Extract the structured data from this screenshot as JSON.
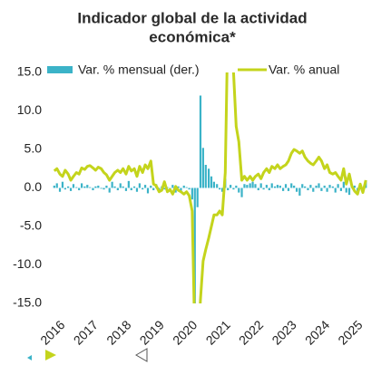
{
  "chart_data": {
    "type": "combo",
    "title": [
      "Indicador global de la actividad",
      "económica*"
    ],
    "xlim": [
      2015.95,
      2025.55
    ],
    "xticks": [
      2016,
      2017,
      2018,
      2019,
      2020,
      2021,
      2022,
      2023,
      2024,
      2025
    ],
    "ylim": [
      -15,
      15
    ],
    "yticks": [
      {
        "value": 15,
        "label": "15.0"
      },
      {
        "value": 10,
        "label": "10.0"
      },
      {
        "value": 5,
        "label": "5.0"
      },
      {
        "value": 0,
        "label": "0.0"
      },
      {
        "value": -5,
        "label": "-5.0"
      },
      {
        "value": -10,
        "label": "-10.0"
      },
      {
        "value": -15,
        "label": "-15.0"
      }
    ],
    "x": [
      2016.0,
      2016.08,
      2016.17,
      2016.25,
      2016.33,
      2016.42,
      2016.5,
      2016.58,
      2016.67,
      2016.75,
      2016.83,
      2016.92,
      2017.0,
      2017.08,
      2017.17,
      2017.25,
      2017.33,
      2017.42,
      2017.5,
      2017.58,
      2017.67,
      2017.75,
      2017.83,
      2017.92,
      2018.0,
      2018.08,
      2018.17,
      2018.25,
      2018.33,
      2018.42,
      2018.5,
      2018.58,
      2018.67,
      2018.75,
      2018.83,
      2018.92,
      2019.0,
      2019.08,
      2019.17,
      2019.25,
      2019.33,
      2019.42,
      2019.5,
      2019.58,
      2019.67,
      2019.75,
      2019.83,
      2019.92,
      2020.0,
      2020.08,
      2020.17,
      2020.25,
      2020.33,
      2020.42,
      2020.5,
      2020.58,
      2020.67,
      2020.75,
      2020.83,
      2020.92,
      2021.0,
      2021.08,
      2021.17,
      2021.25,
      2021.33,
      2021.42,
      2021.5,
      2021.58,
      2021.67,
      2021.75,
      2021.83,
      2021.92,
      2022.0,
      2022.08,
      2022.17,
      2022.25,
      2022.33,
      2022.42,
      2022.5,
      2022.58,
      2022.67,
      2022.75,
      2022.83,
      2022.92,
      2023.0,
      2023.08,
      2023.17,
      2023.25,
      2023.33,
      2023.42,
      2023.5,
      2023.58,
      2023.67,
      2023.75,
      2023.83,
      2023.92,
      2024.0,
      2024.08,
      2024.17,
      2024.25,
      2024.33,
      2024.42,
      2024.5,
      2024.58,
      2024.67,
      2024.75,
      2024.83,
      2024.92,
      2025.0,
      2025.08,
      2025.17,
      2025.25,
      2025.33,
      2025.42
    ],
    "series": [
      {
        "name": "Var. % mensual (der.)",
        "type": "bar",
        "color": "#3bb3c8",
        "values": [
          0.3,
          0.6,
          -0.5,
          0.8,
          -0.2,
          0.2,
          -0.4,
          0.5,
          0.1,
          -0.3,
          0.6,
          0.2,
          0.4,
          0.1,
          -0.3,
          0.2,
          0.3,
          -0.1,
          -0.2,
          0.3,
          -0.6,
          0.8,
          0.2,
          -0.3,
          0.6,
          0.2,
          -0.4,
          0.9,
          -0.3,
          0.2,
          -0.5,
          0.6,
          -0.2,
          0.4,
          -0.7,
          0.3,
          -0.3,
          0.5,
          -0.4,
          0.2,
          -0.2,
          0.1,
          -0.3,
          0.4,
          -0.6,
          0.2,
          -0.4,
          0.3,
          0.1,
          -0.2,
          -1.5,
          -17.3,
          -2.5,
          12.0,
          5.2,
          3.0,
          2.5,
          1.5,
          0.8,
          0.5,
          -0.2,
          -0.5,
          1.2,
          -0.3,
          0.4,
          -0.2,
          0.3,
          -0.6,
          -1.2,
          0.5,
          0.4,
          0.6,
          0.8,
          0.5,
          -0.3,
          0.6,
          -0.2,
          0.4,
          -0.3,
          0.6,
          0.2,
          0.4,
          0.3,
          -0.4,
          0.5,
          -0.4,
          0.6,
          0.3,
          -0.5,
          -1.0,
          0.5,
          0.2,
          -0.3,
          0.4,
          -0.5,
          0.3,
          0.6,
          -0.4,
          0.3,
          -0.5,
          0.4,
          0.2,
          -0.6,
          0.5,
          -0.4,
          0.8,
          -0.6,
          -0.9,
          0.5,
          0.3,
          -0.4,
          0.6,
          -0.5,
          1.0
        ]
      },
      {
        "name": "Var. % anual",
        "type": "line",
        "color": "#c4d41c",
        "values": [
          2.2,
          2.5,
          1.8,
          1.5,
          2.3,
          1.8,
          1.0,
          1.5,
          2.0,
          1.8,
          2.6,
          2.4,
          2.8,
          2.9,
          2.6,
          2.3,
          2.7,
          2.5,
          2.0,
          1.7,
          1.0,
          1.5,
          2.0,
          2.3,
          2.0,
          2.5,
          1.8,
          2.8,
          2.2,
          2.5,
          1.5,
          2.8,
          2.0,
          3.0,
          2.5,
          3.5,
          0.5,
          0.3,
          -0.5,
          -0.3,
          0.8,
          -0.5,
          -0.2,
          -0.8,
          0.2,
          -0.3,
          -0.5,
          -0.8,
          -0.5,
          -1.0,
          -3.0,
          -19.7,
          -21.6,
          -14.5,
          -9.5,
          -8.0,
          -6.5,
          -5.0,
          -3.5,
          -3.5,
          -3.0,
          -3.5,
          2.0,
          22.0,
          24.0,
          15.0,
          8.0,
          6.0,
          1.0,
          1.5,
          1.0,
          1.5,
          1.0,
          1.5,
          1.8,
          1.2,
          2.0,
          2.5,
          2.0,
          2.8,
          2.5,
          3.0,
          2.5,
          2.8,
          3.0,
          3.5,
          4.5,
          5.0,
          4.8,
          4.5,
          4.8,
          4.0,
          3.5,
          3.2,
          3.0,
          3.5,
          4.0,
          3.5,
          2.5,
          3.0,
          2.0,
          1.8,
          2.0,
          1.5,
          1.0,
          2.5,
          0.5,
          1.8,
          0.2,
          -0.4,
          -0.8,
          0.5,
          -0.6,
          1.0
        ]
      }
    ]
  }
}
